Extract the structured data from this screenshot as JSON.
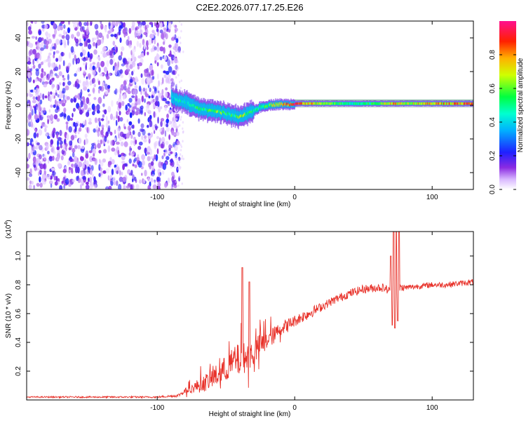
{
  "title": "C2E2.2026.077.17.25.E26",
  "chart_data": [
    {
      "type": "heatmap",
      "id": "spectrogram",
      "xlabel": "Height of straight line (km)",
      "ylabel": "Frequency (Hz)",
      "xlim": [
        -195,
        130
      ],
      "ylim": [
        -50,
        50
      ],
      "xticks": [
        -100,
        0,
        100
      ],
      "xtick_labels": [
        "-100",
        "0",
        "100"
      ],
      "yticks": [
        -40,
        -20,
        0,
        20,
        40
      ],
      "ytick_labels": [
        "-40",
        "-20",
        "0",
        "20",
        "40"
      ],
      "noise_region": {
        "x_from": -195,
        "x_to": -88,
        "freq_range": [
          -50,
          50
        ]
      },
      "signal_trace": {
        "x": [
          -90,
          -85,
          -80,
          -75,
          -70,
          -65,
          -60,
          -55,
          -50,
          -45,
          -40,
          -35,
          -30,
          -25,
          -20,
          -15,
          -10,
          -5,
          0,
          10,
          20,
          40,
          60,
          70,
          80,
          100,
          120,
          130
        ],
        "frequency": [
          5,
          3,
          2,
          0,
          -2,
          -3,
          -3,
          -4,
          -5,
          -6,
          -7,
          -5,
          -3,
          -1,
          0,
          0.5,
          0.5,
          0.5,
          1,
          1,
          1,
          1,
          1,
          1,
          1,
          1,
          1,
          1
        ],
        "amplitude": [
          0.4,
          0.5,
          0.45,
          0.5,
          0.6,
          0.55,
          0.6,
          0.65,
          0.6,
          0.55,
          0.7,
          0.6,
          0.5,
          0.55,
          0.6,
          0.75,
          0.8,
          0.85,
          0.95,
          0.8,
          0.7,
          0.5,
          0.6,
          0.85,
          0.75,
          0.8,
          0.85,
          0.9
        ]
      },
      "colorbar": {
        "label": "Normalized spectral amplitude",
        "range": [
          0,
          1
        ],
        "ticks": [
          0,
          0.2,
          0.4,
          0.6,
          0.8
        ],
        "tick_labels": [
          "0.0",
          "0.2",
          "0.4",
          "0.6",
          "0.8"
        ],
        "colormap": "rainbow (white-purple-blue-cyan-green-yellow-red-magenta)"
      }
    },
    {
      "type": "line",
      "id": "snr",
      "xlabel": "Height of straight line (km)",
      "ylabel": "SNR (10 * v/v)",
      "y_multiplier_label": "(x10",
      "y_multiplier_exp": "4",
      "y_multiplier_close": ")",
      "xlim": [
        -195,
        130
      ],
      "ylim": [
        0,
        1.17
      ],
      "xticks": [
        -100,
        0,
        100
      ],
      "xtick_labels": [
        "-100",
        "0",
        "100"
      ],
      "yticks": [
        0.2,
        0.4,
        0.6,
        0.8,
        1.0
      ],
      "ytick_labels": [
        "0.2",
        "0.4",
        "0.6",
        "0.8",
        "1.0"
      ],
      "series": [
        {
          "name": "SNR",
          "color": "#e8322a",
          "x": [
            -195,
            -100,
            -85,
            -80,
            -75,
            -70,
            -65,
            -60,
            -55,
            -50,
            -45,
            -40,
            -35,
            -30,
            -25,
            -20,
            -15,
            -10,
            -5,
            0,
            10,
            20,
            30,
            40,
            50,
            60,
            65,
            70,
            72,
            75,
            78,
            80,
            90,
            100,
            110,
            120,
            130
          ],
          "values": [
            0.02,
            0.02,
            0.03,
            0.06,
            0.08,
            0.1,
            0.12,
            0.15,
            0.18,
            0.22,
            0.26,
            0.28,
            0.3,
            0.33,
            0.38,
            0.42,
            0.45,
            0.5,
            0.52,
            0.55,
            0.6,
            0.65,
            0.7,
            0.74,
            0.77,
            0.78,
            0.78,
            0.75,
            0.7,
            0.78,
            0.78,
            0.78,
            0.79,
            0.8,
            0.8,
            0.81,
            0.82
          ],
          "noise_amplitude": [
            0.005,
            0.006,
            0.01,
            0.02,
            0.03,
            0.05,
            0.06,
            0.07,
            0.08,
            0.09,
            0.1,
            0.12,
            0.1,
            0.1,
            0.08,
            0.07,
            0.06,
            0.05,
            0.05,
            0.04,
            0.04,
            0.03,
            0.03,
            0.03,
            0.03,
            0.03,
            0.03,
            0.03,
            0.03,
            0.03,
            0.03,
            0.02,
            0.02,
            0.02,
            0.02,
            0.02,
            0.02
          ],
          "spikes": [
            {
              "x": -38,
              "value": 0.92
            },
            {
              "x": -33,
              "value": 0.82
            },
            {
              "x": 70,
              "value": 1.0
            },
            {
              "x": 71,
              "value": 0.52
            },
            {
              "x": 72,
              "value": 1.17
            },
            {
              "x": 73,
              "value": 0.5
            },
            {
              "x": 74,
              "value": 1.17
            },
            {
              "x": 75,
              "value": 0.55
            },
            {
              "x": 76,
              "value": 1.17
            }
          ]
        }
      ]
    }
  ]
}
